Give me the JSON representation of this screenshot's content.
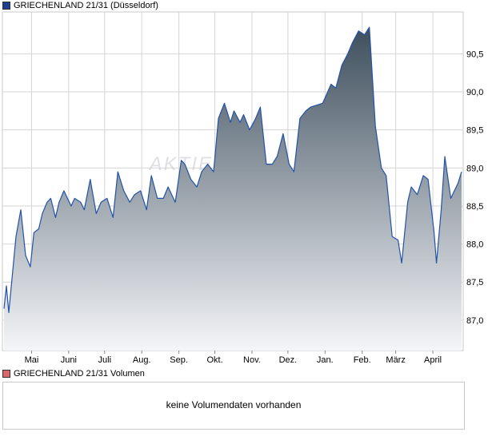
{
  "price_panel": {
    "legend_label": "GRIECHENLAND 21/31 (Düsseldorf)",
    "legend_color": "#1f3f8f",
    "watermark": "AKTIEN"
  },
  "volume_panel": {
    "legend_label": "GRIECHENLAND 21/31 Volumen",
    "legend_color": "#d9686d",
    "message": "keine Volumendaten vorhanden"
  },
  "colors": {
    "line": "#2352a8",
    "fill_top": "#3e4f5d",
    "fill_bottom": "#f4f5f8",
    "grid": "#d4d4d4"
  },
  "chart_data": {
    "type": "area",
    "series": [
      {
        "name": "GRIECHENLAND 21/31 (Düsseldorf)"
      }
    ],
    "x_ticks": [
      "Mai",
      "Juni",
      "Juli",
      "Aug.",
      "Sep.",
      "Okt.",
      "Nov.",
      "Dez.",
      "Jan.",
      "Feb.",
      "März",
      "April"
    ],
    "y_ticks": [
      "87,0",
      "87,5",
      "88,0",
      "88,5",
      "89,0",
      "89,5",
      "90,0",
      "90,5"
    ],
    "ylim": [
      86.6,
      91.05
    ],
    "grid": true,
    "x": [
      "2024-04-08",
      "2024-04-10",
      "2024-04-12",
      "2024-04-15",
      "2024-04-18",
      "2024-04-22",
      "2024-04-24",
      "2024-04-26",
      "2024-04-30",
      "2024-05-03",
      "2024-05-07",
      "2024-05-10",
      "2024-05-14",
      "2024-05-17",
      "2024-05-21",
      "2024-05-24",
      "2024-05-28",
      "2024-06-03",
      "2024-06-06",
      "2024-06-11",
      "2024-06-14",
      "2024-06-19",
      "2024-06-24",
      "2024-06-28",
      "2024-07-03",
      "2024-07-08",
      "2024-07-12",
      "2024-07-17",
      "2024-07-22",
      "2024-07-26",
      "2024-07-31",
      "2024-08-05",
      "2024-08-09",
      "2024-08-14",
      "2024-08-19",
      "2024-08-23",
      "2024-08-29",
      "2024-09-03",
      "2024-09-06",
      "2024-09-11",
      "2024-09-16",
      "2024-09-20",
      "2024-09-25",
      "2024-09-30",
      "2024-10-04",
      "2024-10-09",
      "2024-10-14",
      "2024-10-17",
      "2024-10-22",
      "2024-10-25",
      "2024-10-30",
      "2024-11-04",
      "2024-11-08",
      "2024-11-13",
      "2024-11-18",
      "2024-11-22",
      "2024-11-27",
      "2024-12-02",
      "2024-12-06",
      "2024-12-11",
      "2024-12-16",
      "2024-12-20",
      "2024-12-30",
      "2025-01-06",
      "2025-01-10",
      "2025-01-15",
      "2025-01-20",
      "2025-01-24",
      "2025-01-29",
      "2025-02-03",
      "2025-02-07",
      "2025-02-12",
      "2025-02-17",
      "2025-02-21",
      "2025-02-26",
      "2025-03-03",
      "2025-03-06",
      "2025-03-11",
      "2025-03-14",
      "2025-03-19",
      "2025-03-24",
      "2025-03-28",
      "2025-04-02",
      "2025-04-04",
      "2025-04-08",
      "2025-04-11",
      "2025-04-16",
      "2025-04-22",
      "2025-04-25"
    ],
    "y": [
      87.15,
      87.45,
      87.1,
      87.6,
      88.1,
      88.45,
      88.15,
      87.85,
      87.7,
      88.15,
      88.2,
      88.4,
      88.55,
      88.6,
      88.35,
      88.55,
      88.7,
      88.5,
      88.6,
      88.55,
      88.45,
      88.85,
      88.4,
      88.55,
      88.6,
      88.35,
      88.95,
      88.7,
      88.55,
      88.65,
      88.7,
      88.45,
      88.9,
      88.6,
      88.6,
      88.75,
      88.55,
      89.1,
      89.05,
      88.85,
      88.75,
      88.95,
      89.05,
      88.95,
      89.65,
      89.85,
      89.6,
      89.75,
      89.6,
      89.7,
      89.5,
      89.65,
      89.8,
      89.05,
      89.05,
      89.15,
      89.45,
      89.05,
      88.95,
      89.65,
      89.75,
      89.8,
      89.85,
      90.1,
      90.05,
      90.35,
      90.5,
      90.65,
      90.8,
      90.75,
      90.85,
      89.55,
      89.0,
      88.9,
      88.1,
      88.05,
      87.75,
      88.55,
      88.75,
      88.65,
      88.9,
      88.85,
      88.15,
      87.75,
      88.45,
      89.15,
      88.6,
      88.8,
      88.95
    ]
  }
}
